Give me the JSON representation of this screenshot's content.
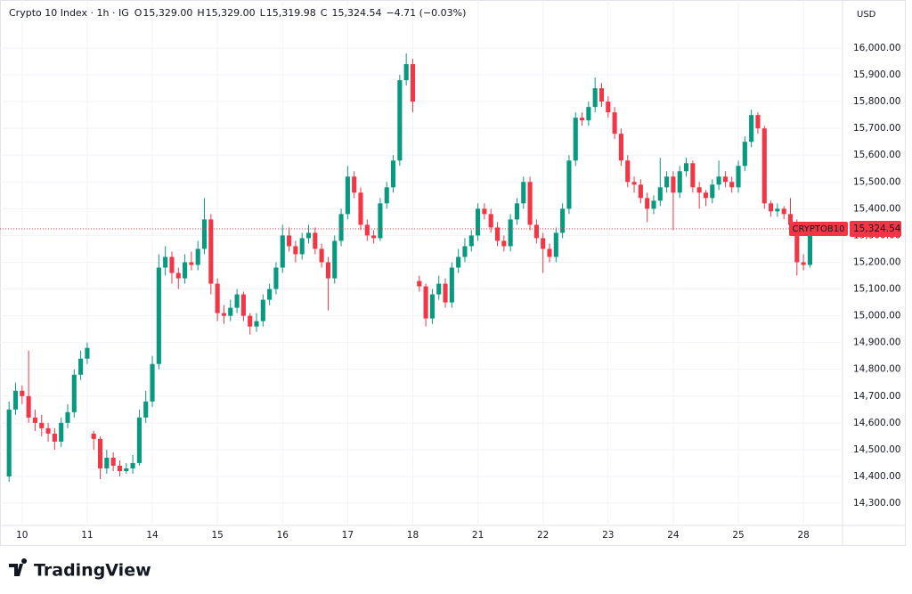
{
  "header": {
    "title": "Crypto 10 Index · 1h · IG",
    "o": "O",
    "open": "15,329.00",
    "h": "H",
    "high": "15,329.00",
    "l": "L",
    "low": "15,319.98",
    "c": "C",
    "close": "15,324.54",
    "change": "−4.71 (−0.03%)",
    "currency": "USD",
    "brand": "TradingView"
  },
  "chart_data": {
    "type": "candlestick",
    "up_color": "#089981",
    "down_color": "#f23645",
    "grid": true,
    "ylim": [
      14217,
      16163
    ],
    "xlim": [
      -0.23,
      12.6
    ],
    "yticks": [
      {
        "value": 14300,
        "label": "14,300.00"
      },
      {
        "value": 14400,
        "label": "14,400.00"
      },
      {
        "value": 14500,
        "label": "14,500.00"
      },
      {
        "value": 14600,
        "label": "14,600.00"
      },
      {
        "value": 14700,
        "label": "14,700.00"
      },
      {
        "value": 14800,
        "label": "14,800.00"
      },
      {
        "value": 14900,
        "label": "14,900.00"
      },
      {
        "value": 15000,
        "label": "15,000.00"
      },
      {
        "value": 15100,
        "label": "15,100.00"
      },
      {
        "value": 15200,
        "label": "15,200.00"
      },
      {
        "value": 15300,
        "label": "15,300.00"
      },
      {
        "value": 15400,
        "label": "15,400.00"
      },
      {
        "value": 15500,
        "label": "15,500.00"
      },
      {
        "value": 15600,
        "label": "15,600.00"
      },
      {
        "value": 15700,
        "label": "15,700.00"
      },
      {
        "value": 15800,
        "label": "15,800.00"
      },
      {
        "value": 15900,
        "label": "15,900.00"
      },
      {
        "value": 16000,
        "label": "16,000.00"
      }
    ],
    "xticks": [
      {
        "value": 0,
        "label": "10"
      },
      {
        "value": 1,
        "label": "11"
      },
      {
        "value": 2,
        "label": "14"
      },
      {
        "value": 3,
        "label": "15"
      },
      {
        "value": 4,
        "label": "16"
      },
      {
        "value": 5,
        "label": "17"
      },
      {
        "value": 6,
        "label": "18"
      },
      {
        "value": 7,
        "label": "21"
      },
      {
        "value": 8,
        "label": "22"
      },
      {
        "value": 9,
        "label": "23"
      },
      {
        "value": 10,
        "label": "24"
      },
      {
        "value": 11,
        "label": "25"
      },
      {
        "value": 12,
        "label": "28"
      }
    ],
    "last_price": {
      "value": 15324.54,
      "label": "15,324.54",
      "symbol": "CRYPTOB10"
    },
    "x": [
      -0.2,
      -0.1,
      0,
      0.1,
      0.2,
      0.3,
      0.4,
      0.5,
      0.6,
      0.7,
      0.8,
      0.9,
      1,
      1.1,
      1.2,
      1.3,
      1.4,
      1.5,
      1.6,
      1.7,
      1.8,
      1.9,
      2,
      2.1,
      2.2,
      2.3,
      2.4,
      2.5,
      2.6,
      2.7,
      2.8,
      2.9,
      3,
      3.1,
      3.2,
      3.3,
      3.4,
      3.5,
      3.6,
      3.7,
      3.8,
      3.9,
      4,
      4.1,
      4.2,
      4.3,
      4.4,
      4.5,
      4.6,
      4.7,
      4.8,
      4.9,
      5,
      5.1,
      5.2,
      5.3,
      5.4,
      5.5,
      5.6,
      5.7,
      5.8,
      5.9,
      6,
      6.1,
      6.2,
      6.3,
      6.4,
      6.5,
      6.6,
      6.7,
      6.8,
      6.9,
      7,
      7.1,
      7.2,
      7.3,
      7.4,
      7.5,
      7.6,
      7.7,
      7.8,
      7.9,
      8,
      8.1,
      8.2,
      8.3,
      8.4,
      8.5,
      8.6,
      8.7,
      8.8,
      8.9,
      9,
      9.1,
      9.2,
      9.3,
      9.4,
      9.5,
      9.6,
      9.7,
      9.8,
      9.9,
      10,
      10.1,
      10.2,
      10.3,
      10.4,
      10.5,
      10.6,
      10.7,
      10.8,
      10.9,
      11,
      11.1,
      11.2,
      11.3,
      11.4,
      11.5,
      11.6,
      11.7,
      11.8,
      11.9,
      12,
      12.1,
      12.2
    ],
    "open": [
      14400,
      14650,
      14720,
      14700,
      14620,
      14600,
      14580,
      14560,
      14530,
      14600,
      14640,
      14780,
      14840,
      14560,
      14540,
      14430,
      14470,
      14440,
      14420,
      14430,
      14450,
      14620,
      14680,
      14820,
      15180,
      15220,
      15160,
      15140,
      15200,
      15190,
      15250,
      15360,
      15120,
      15010,
      15000,
      15030,
      15080,
      15000,
      14960,
      14980,
      15060,
      15100,
      15180,
      15300,
      15260,
      15230,
      15290,
      15310,
      15250,
      15200,
      15140,
      15280,
      15380,
      15520,
      15460,
      15340,
      15300,
      15290,
      15420,
      15480,
      15580,
      15880,
      15940,
      15130,
      15110,
      14990,
      15080,
      15120,
      15050,
      15180,
      15220,
      15260,
      15300,
      15400,
      15380,
      15330,
      15280,
      15260,
      15360,
      15420,
      15500,
      15340,
      15290,
      15250,
      15220,
      15310,
      15400,
      15580,
      15740,
      15730,
      15780,
      15850,
      15800,
      15760,
      15680,
      15580,
      15500,
      15490,
      15440,
      15400,
      15430,
      15480,
      15520,
      15460,
      15540,
      15570,
      15480,
      15460,
      15440,
      15490,
      15520,
      15500,
      15480,
      15560,
      15650,
      15750,
      15700,
      15420,
      15390,
      15400,
      15380,
      15340,
      15200,
      15190,
      15329
    ],
    "high": [
      14680,
      14750,
      14740,
      14870,
      14650,
      14630,
      14600,
      14580,
      14620,
      14670,
      14800,
      14870,
      14900,
      14570,
      14550,
      14500,
      14490,
      14460,
      14450,
      14480,
      14650,
      14720,
      14850,
      15230,
      15260,
      15240,
      15180,
      15230,
      15240,
      15280,
      15440,
      15380,
      15140,
      15040,
      15060,
      15100,
      15090,
      15010,
      15010,
      15080,
      15120,
      15200,
      15340,
      15330,
      15280,
      15310,
      15340,
      15330,
      15270,
      15220,
      15300,
      15400,
      15560,
      15540,
      15480,
      15360,
      15320,
      15440,
      15500,
      15600,
      15900,
      15980,
      15960,
      15150,
      15120,
      15100,
      15150,
      15140,
      15200,
      15250,
      15290,
      15320,
      15420,
      15420,
      15400,
      15350,
      15300,
      15380,
      15440,
      15520,
      15520,
      15360,
      15310,
      15270,
      15330,
      15420,
      15600,
      15760,
      15760,
      15800,
      15890,
      15870,
      15820,
      15780,
      15700,
      15600,
      15520,
      15510,
      15460,
      15450,
      15590,
      15540,
      15540,
      15560,
      15590,
      15580,
      15500,
      15470,
      15510,
      15580,
      15540,
      15520,
      15580,
      15670,
      15770,
      15760,
      15710,
      15430,
      15420,
      15410,
      15440,
      15360,
      15230,
      15310,
      15329
    ],
    "low": [
      14380,
      14630,
      14670,
      14600,
      14570,
      14550,
      14530,
      14500,
      14510,
      14580,
      14620,
      14760,
      14820,
      14500,
      14390,
      14410,
      14420,
      14400,
      14410,
      14410,
      14440,
      14600,
      14660,
      14800,
      15150,
      15120,
      15100,
      15120,
      15170,
      15170,
      15230,
      15080,
      14980,
      14970,
      14980,
      15010,
      14980,
      14930,
      14940,
      14960,
      15040,
      15080,
      15160,
      15240,
      15200,
      15210,
      15270,
      15230,
      15180,
      15020,
      15120,
      15260,
      15360,
      15440,
      15320,
      15280,
      15270,
      15280,
      15400,
      15460,
      15560,
      15860,
      15760,
      15090,
      14960,
      14970,
      15060,
      15030,
      15030,
      15160,
      15200,
      15240,
      15280,
      15360,
      15310,
      15260,
      15240,
      15240,
      15340,
      15400,
      15320,
      15270,
      15160,
      15200,
      15200,
      15290,
      15380,
      15560,
      15710,
      15710,
      15760,
      15780,
      15740,
      15660,
      15560,
      15480,
      15460,
      15420,
      15350,
      15380,
      15410,
      15460,
      15320,
      15440,
      15520,
      15460,
      15400,
      15410,
      15420,
      15470,
      15480,
      15460,
      15460,
      15540,
      15630,
      15680,
      15400,
      15370,
      15370,
      15360,
      15320,
      15150,
      15170,
      15180,
      15319.98
    ],
    "close": [
      14650,
      14720,
      14700,
      14620,
      14600,
      14580,
      14560,
      14530,
      14600,
      14640,
      14780,
      14840,
      14880,
      14540,
      14430,
      14470,
      14440,
      14420,
      14430,
      14450,
      14620,
      14680,
      14820,
      15180,
      15220,
      15160,
      15140,
      15200,
      15190,
      15250,
      15360,
      15120,
      15010,
      15000,
      15030,
      15080,
      15000,
      14960,
      14980,
      15060,
      15100,
      15180,
      15300,
      15260,
      15230,
      15290,
      15310,
      15250,
      15200,
      15140,
      15280,
      15380,
      15520,
      15460,
      15340,
      15300,
      15290,
      15420,
      15480,
      15580,
      15880,
      15940,
      15800,
      15110,
      14990,
      15080,
      15120,
      15050,
      15180,
      15220,
      15260,
      15300,
      15400,
      15380,
      15330,
      15280,
      15260,
      15360,
      15420,
      15500,
      15340,
      15290,
      15250,
      15220,
      15310,
      15400,
      15580,
      15740,
      15730,
      15780,
      15850,
      15800,
      15760,
      15680,
      15580,
      15500,
      15490,
      15440,
      15400,
      15430,
      15480,
      15520,
      15460,
      15540,
      15570,
      15480,
      15460,
      15440,
      15490,
      15520,
      15500,
      15480,
      15560,
      15650,
      15750,
      15700,
      15420,
      15390,
      15400,
      15380,
      15340,
      15200,
      15190,
      15300,
      15324.54
    ]
  }
}
